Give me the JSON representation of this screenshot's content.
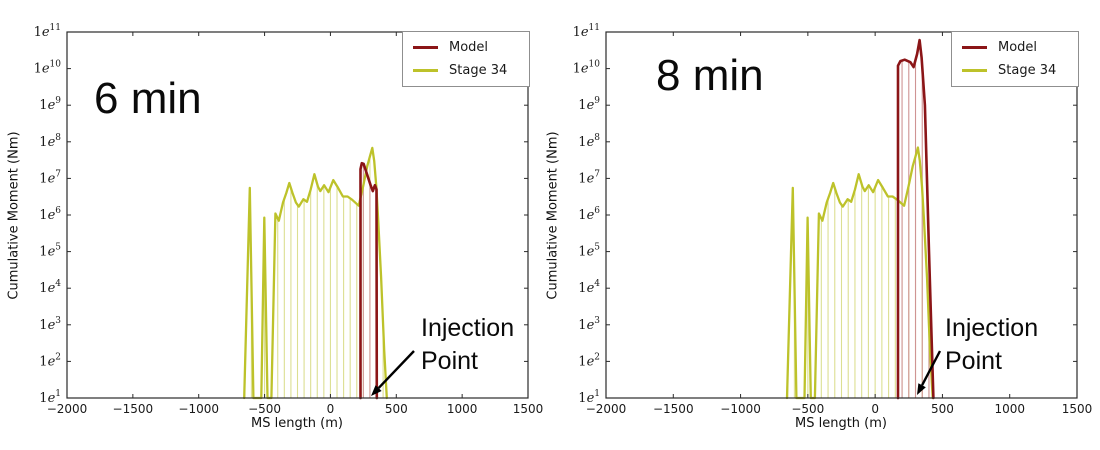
{
  "chart_data": [
    {
      "type": "line",
      "title": "6 min",
      "xlabel": "MS length (m)",
      "ylabel": "Cumulative Moment (Nm)",
      "x_axis": {
        "min": -2000,
        "max": 1500,
        "tick_values": [
          -2000,
          -1500,
          -1000,
          -500,
          0,
          500,
          1000,
          1500
        ],
        "tick_labels": [
          "−2000",
          "−1500",
          "−1000",
          "−500",
          "0",
          "500",
          "1000",
          "1500"
        ]
      },
      "y_axis": {
        "scale": "log",
        "min_exp": 1,
        "max_exp": 11,
        "tick_mantissa": "1",
        "tick_e": "e",
        "tick_exponents": [
          1,
          2,
          3,
          4,
          5,
          6,
          7,
          8,
          9,
          10,
          11
        ]
      },
      "layout_hints": {
        "legend_position": "upper right",
        "grid": false
      },
      "annotation_lines": [
        "Injection",
        "Point"
      ],
      "annotation_target_x_m": 320,
      "stem_spacing_m": 50,
      "series": [
        {
          "name": "Model",
          "color": "#8b1517",
          "stem_color": "#d09a9a",
          "points": [
            [
              228,
              10.0
            ],
            [
              228,
              18000000.0
            ],
            [
              238,
              26000000.0
            ],
            [
              252,
              25000000.0
            ],
            [
              278,
              13000000.0
            ],
            [
              305,
              6500000.0
            ],
            [
              322,
              4500000.0
            ],
            [
              338,
              6500000.0
            ],
            [
              350,
              5000000.0
            ],
            [
              352,
              10.0
            ]
          ]
        },
        {
          "name": "Stage 34",
          "color": "#bdc22a",
          "stem_color": "#dcdf92",
          "points": [
            [
              -655,
              10.0
            ],
            [
              -612,
              5500000.0
            ],
            [
              -585,
              10.0
            ],
            [
              -525,
              10.0
            ],
            [
              -502,
              850000.0
            ],
            [
              -478,
              10.0
            ],
            [
              -448,
              10.0
            ],
            [
              -418,
              1100000.0
            ],
            [
              -392,
              700000.0
            ],
            [
              -360,
              2200000.0
            ],
            [
              -335,
              4000000.0
            ],
            [
              -312,
              7500000.0
            ],
            [
              -288,
              4000000.0
            ],
            [
              -262,
              2200000.0
            ],
            [
              -240,
              1700000.0
            ],
            [
              -205,
              2700000.0
            ],
            [
              -178,
              2300000.0
            ],
            [
              -150,
              5000000.0
            ],
            [
              -122,
              13000000.0
            ],
            [
              -95,
              6000000.0
            ],
            [
              -77,
              4500000.0
            ],
            [
              -48,
              6500000.0
            ],
            [
              -15,
              4200000.0
            ],
            [
              22,
              9000000.0
            ],
            [
              58,
              5500000.0
            ],
            [
              95,
              3200000.0
            ],
            [
              130,
              3200000.0
            ],
            [
              165,
              2600000.0
            ],
            [
              215,
              1800000.0
            ],
            [
              248,
              6000000.0
            ],
            [
              280,
              22000000.0
            ],
            [
              300,
              40000000.0
            ],
            [
              318,
              68000000.0
            ],
            [
              332,
              30000000.0
            ],
            [
              348,
              6000000.0
            ],
            [
              362,
              800000.0
            ],
            [
              385,
              20000.0
            ],
            [
              408,
              200.0
            ],
            [
              428,
              10.0
            ]
          ]
        }
      ]
    },
    {
      "type": "line",
      "title": "8 min",
      "xlabel": "MS length (m)",
      "ylabel": "Cumulative Moment (Nm)",
      "x_axis": {
        "min": -2000,
        "max": 1500,
        "tick_values": [
          -2000,
          -1500,
          -1000,
          -500,
          0,
          500,
          1000,
          1500
        ],
        "tick_labels": [
          "−2000",
          "−1500",
          "−1000",
          "−500",
          "0",
          "500",
          "1000",
          "1500"
        ]
      },
      "y_axis": {
        "scale": "log",
        "min_exp": 1,
        "max_exp": 11,
        "tick_mantissa": "1",
        "tick_e": "e",
        "tick_exponents": [
          1,
          2,
          3,
          4,
          5,
          6,
          7,
          8,
          9,
          10,
          11
        ]
      },
      "layout_hints": {
        "legend_position": "upper right",
        "grid": false
      },
      "annotation_lines": [
        "Injection",
        "Point"
      ],
      "annotation_target_x_m": 320,
      "stem_spacing_m": 50,
      "series": [
        {
          "name": "Model",
          "color": "#8b1517",
          "stem_color": "#cf9494",
          "points": [
            [
              170,
              10.0
            ],
            [
              170,
              12000000000.0
            ],
            [
              188,
              16000000000.0
            ],
            [
              220,
              17500000000.0
            ],
            [
              262,
              15000000000.0
            ],
            [
              286,
              11000000000.0
            ],
            [
              312,
              25000000000.0
            ],
            [
              330,
              60000000000.0
            ],
            [
              345,
              20000000000.0
            ],
            [
              370,
              1000000000.0
            ],
            [
              400,
              100000.0
            ],
            [
              433,
              10.0
            ]
          ]
        },
        {
          "name": "Stage 34",
          "color": "#bdc22a",
          "stem_color": "#dcdf92",
          "points": [
            [
              -655,
              10.0
            ],
            [
              -612,
              5500000.0
            ],
            [
              -585,
              10.0
            ],
            [
              -525,
              10.0
            ],
            [
              -502,
              850000.0
            ],
            [
              -478,
              10.0
            ],
            [
              -448,
              10.0
            ],
            [
              -418,
              1100000.0
            ],
            [
              -392,
              700000.0
            ],
            [
              -360,
              2200000.0
            ],
            [
              -335,
              4000000.0
            ],
            [
              -312,
              7500000.0
            ],
            [
              -288,
              4000000.0
            ],
            [
              -262,
              2200000.0
            ],
            [
              -240,
              1700000.0
            ],
            [
              -205,
              2700000.0
            ],
            [
              -178,
              2300000.0
            ],
            [
              -150,
              5000000.0
            ],
            [
              -122,
              13000000.0
            ],
            [
              -95,
              6000000.0
            ],
            [
              -77,
              4500000.0
            ],
            [
              -48,
              6500000.0
            ],
            [
              -15,
              4200000.0
            ],
            [
              22,
              9000000.0
            ],
            [
              58,
              5500000.0
            ],
            [
              95,
              3200000.0
            ],
            [
              130,
              3200000.0
            ],
            [
              165,
              2600000.0
            ],
            [
              215,
              1800000.0
            ],
            [
              248,
              6000000.0
            ],
            [
              280,
              22000000.0
            ],
            [
              300,
              40000000.0
            ],
            [
              318,
              70000000.0
            ],
            [
              332,
              30000000.0
            ],
            [
              348,
              6000000.0
            ],
            [
              362,
              800000.0
            ],
            [
              385,
              20000.0
            ],
            [
              408,
              200.0
            ],
            [
              428,
              10.0
            ]
          ]
        }
      ]
    }
  ]
}
